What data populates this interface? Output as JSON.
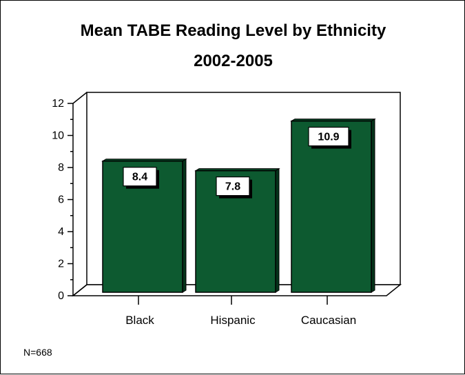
{
  "chart_data": {
    "type": "bar",
    "title": "Mean TABE Reading Level by Ethnicity",
    "subtitle": "2002-2005",
    "categories": [
      "Black",
      "Hispanic",
      "Caucasian"
    ],
    "values": [
      8.4,
      7.8,
      10.9
    ],
    "data_labels": [
      "8.4",
      "7.8",
      "10.9"
    ],
    "y_ticks": [
      0,
      2,
      4,
      6,
      8,
      10,
      12
    ],
    "ylim": [
      0,
      12
    ],
    "xlabel": "",
    "ylabel": "",
    "grid": false,
    "style": "3d",
    "bar_color": "#0d5a30",
    "note": "N=668"
  }
}
